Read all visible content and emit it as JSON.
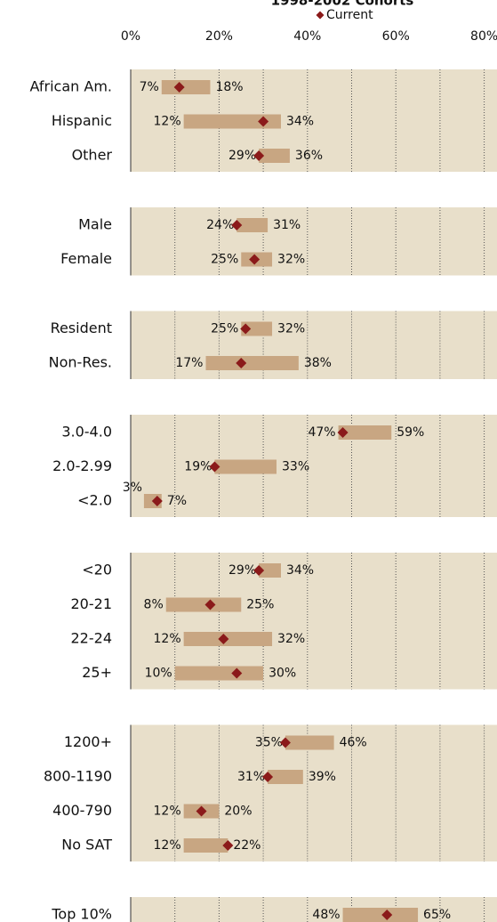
{
  "chart_data": {
    "type": "range",
    "title": "1998-2002 Cohorts",
    "legend": {
      "name": "Current",
      "color": "#8b1a1a"
    },
    "bar_color": "#c8a682",
    "panel_color": "#e8dfca",
    "xlim": [
      0,
      83
    ],
    "xticks": [
      {
        "value": 0,
        "label": "0%"
      },
      {
        "value": 20,
        "label": "20%"
      },
      {
        "value": 40,
        "label": "40%"
      },
      {
        "value": 60,
        "label": "60%"
      },
      {
        "value": 80,
        "label": "80%"
      }
    ],
    "minor_xticks": [
      10,
      30,
      50,
      70
    ],
    "grid": true,
    "groups": [
      {
        "categories": [
          "African Am.",
          "Hispanic",
          "Other"
        ],
        "low": [
          7,
          12,
          29
        ],
        "high": [
          18,
          34,
          36
        ],
        "low_labels": [
          "7%",
          "12%",
          "29%"
        ],
        "high_labels": [
          "18%",
          "34%",
          "36%"
        ],
        "current": [
          11,
          30,
          29
        ]
      },
      {
        "categories": [
          "Male",
          "Female"
        ],
        "low": [
          24,
          25
        ],
        "high": [
          31,
          32
        ],
        "low_labels": [
          "24%",
          "25%"
        ],
        "high_labels": [
          "31%",
          "32%"
        ],
        "current": [
          24,
          28
        ]
      },
      {
        "categories": [
          "Resident",
          "Non-Res."
        ],
        "low": [
          25,
          17
        ],
        "high": [
          32,
          38
        ],
        "low_labels": [
          "25%",
          "17%"
        ],
        "high_labels": [
          "32%",
          "38%"
        ],
        "current": [
          26,
          25
        ]
      },
      {
        "categories": [
          "3.0-4.0",
          "2.0-2.99",
          "<2.0"
        ],
        "low": [
          47,
          19,
          3
        ],
        "high": [
          59,
          33,
          7
        ],
        "low_labels": [
          "47%",
          "19%",
          "3%"
        ],
        "high_labels": [
          "59%",
          "33%",
          "7%"
        ],
        "current": [
          48,
          19,
          6
        ]
      },
      {
        "categories": [
          "<20",
          "20-21",
          "22-24",
          "25+"
        ],
        "low": [
          29,
          8,
          12,
          10
        ],
        "high": [
          34,
          25,
          32,
          30
        ],
        "low_labels": [
          "29%",
          "8%",
          "12%",
          "10%"
        ],
        "high_labels": [
          "34%",
          "25%",
          "32%",
          "30%"
        ],
        "current": [
          29,
          18,
          21,
          24
        ]
      },
      {
        "categories": [
          "1200+",
          "800-1190",
          "400-790",
          "No SAT"
        ],
        "low": [
          35,
          31,
          12,
          12
        ],
        "high": [
          46,
          39,
          20,
          22
        ],
        "low_labels": [
          "35%",
          "31%",
          "12%",
          "12%"
        ],
        "high_labels": [
          "46%",
          "39%",
          "20%",
          "22%"
        ],
        "current": [
          35,
          31,
          16,
          22
        ]
      },
      {
        "categories": [
          "Top 10%"
        ],
        "low": [
          48
        ],
        "high": [
          65
        ],
        "low_labels": [
          "48%"
        ],
        "high_labels": [
          "65%"
        ],
        "current": [
          58
        ]
      }
    ]
  }
}
